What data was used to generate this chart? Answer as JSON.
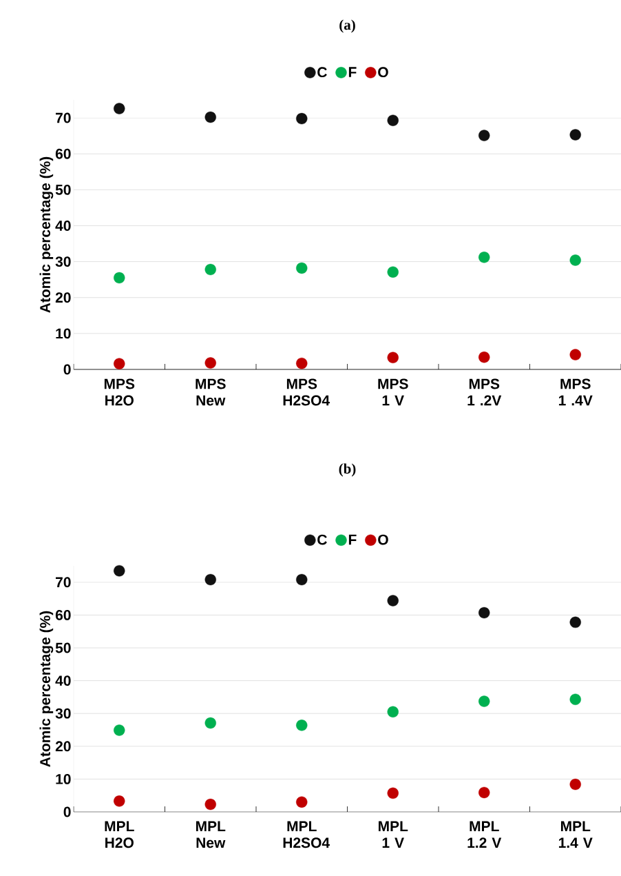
{
  "chart_data": [
    {
      "type": "scatter",
      "title": "(a)",
      "ylabel": "Atomic percentage (%)",
      "categories": [
        "MPS H2O",
        "MPS New",
        "MPS H2SO4",
        "MPS 1 V",
        "MPS 1 .2V",
        "MPS 1 .4V"
      ],
      "series": [
        {
          "name": "C",
          "color": "#111111",
          "values": [
            72.6,
            70.2,
            69.8,
            69.3,
            65.1,
            65.3
          ]
        },
        {
          "name": "F",
          "color": "#00b050",
          "values": [
            25.5,
            27.8,
            28.2,
            27.1,
            31.2,
            30.4
          ]
        },
        {
          "name": "O",
          "color": "#c00000",
          "values": [
            1.6,
            1.8,
            1.7,
            3.3,
            3.4,
            4.1
          ]
        }
      ],
      "ylim": [
        0,
        75
      ],
      "yticks": [
        0,
        10,
        20,
        30,
        40,
        50,
        60,
        70
      ],
      "grid": "y",
      "legend": "top",
      "marker": "circle"
    },
    {
      "type": "scatter",
      "title": "(b)",
      "ylabel": "Atomic percentage (%)",
      "categories": [
        "MPL H2O",
        "MPL New",
        "MPL H2SO4",
        "MPL 1 V",
        "MPL 1.2 V",
        "MPL 1.4 V"
      ],
      "series": [
        {
          "name": "C",
          "color": "#111111",
          "values": [
            73.5,
            70.8,
            70.8,
            64.4,
            60.7,
            57.8
          ]
        },
        {
          "name": "F",
          "color": "#00b050",
          "values": [
            24.9,
            27.1,
            26.4,
            30.5,
            33.7,
            34.3
          ]
        },
        {
          "name": "O",
          "color": "#c00000",
          "values": [
            3.3,
            2.3,
            3.0,
            5.7,
            5.9,
            8.4
          ]
        }
      ],
      "ylim": [
        0,
        75
      ],
      "yticks": [
        0,
        10,
        20,
        30,
        40,
        50,
        60,
        70
      ],
      "grid": "y",
      "legend": "top",
      "marker": "circle"
    }
  ]
}
